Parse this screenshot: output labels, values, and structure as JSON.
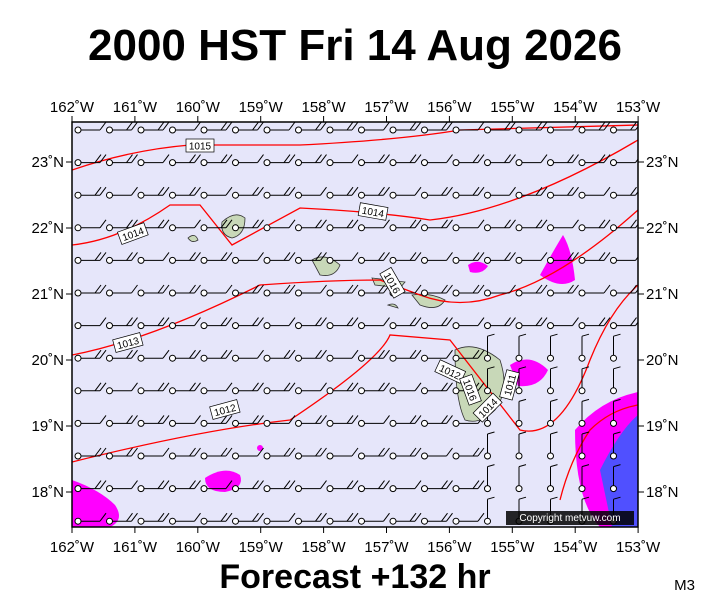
{
  "header": {
    "title": "2000 HST Fri 14 Aug 2026"
  },
  "footer": {
    "forecast": "Forecast +132 hr",
    "model": "M3"
  },
  "map": {
    "longitude_labels": [
      "162˚W",
      "161˚W",
      "160˚W",
      "159˚W",
      "158˚W",
      "157˚W",
      "156˚W",
      "155˚W",
      "154˚W",
      "153˚W"
    ],
    "latitude_labels": [
      "23˚N",
      "22˚N",
      "21˚N",
      "20˚N",
      "19˚N",
      "18˚N"
    ],
    "isobar_labels": [
      "1015",
      "1014",
      "1014",
      "1016",
      "1013",
      "1012",
      "1012",
      "1016",
      "1014",
      "1011"
    ],
    "copyright": "Copyright metvuw.com"
  }
}
